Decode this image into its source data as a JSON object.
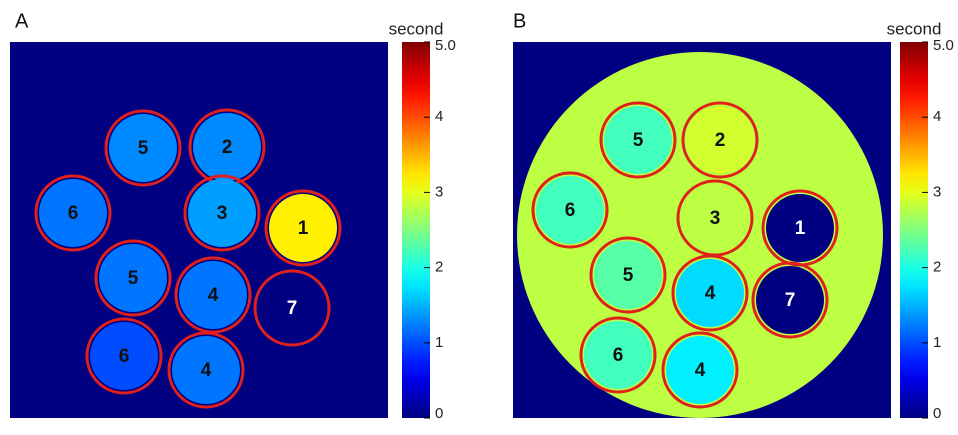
{
  "chart_data": [
    {
      "type": "heatmap",
      "panel": "A",
      "colorbar_label": "second",
      "clim": [
        0,
        5
      ],
      "cticks": [
        0,
        1,
        2,
        3,
        4,
        {
          "value": 5,
          "label": "5.0"
        }
      ],
      "background_value": 0,
      "regions": [
        "5",
        "2",
        "6",
        "3",
        "1",
        "5",
        "4",
        "7",
        "6",
        "4"
      ],
      "values": [
        1.3,
        1.3,
        1.2,
        1.4,
        3.2,
        1.2,
        1.2,
        0,
        1.0,
        1.2
      ]
    },
    {
      "type": "heatmap",
      "panel": "B",
      "colorbar_label": "second",
      "clim": [
        0,
        5
      ],
      "cticks": [
        0,
        1,
        2,
        3,
        4,
        {
          "value": 5,
          "label": "5.0"
        }
      ],
      "background_value": 0,
      "phantom_value": 2.8,
      "regions": [
        "5",
        "2",
        "6",
        "3",
        "1",
        "5",
        "4",
        "7",
        "6",
        "4"
      ],
      "values": [
        2.2,
        2.9,
        2.2,
        2.8,
        0,
        2.3,
        1.7,
        0,
        2.2,
        1.8
      ]
    }
  ]
}
